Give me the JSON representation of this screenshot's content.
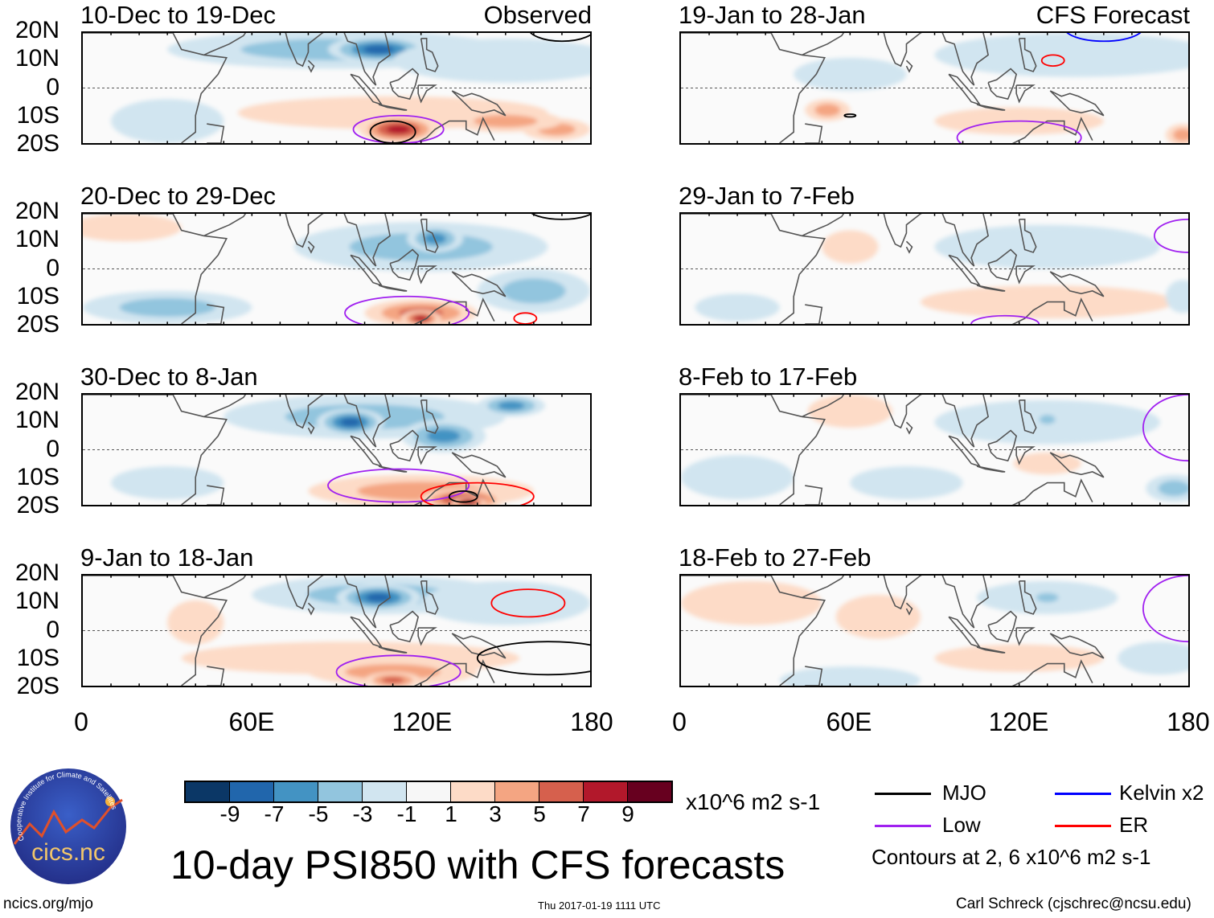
{
  "colors": {
    "scale": [
      "#0b3766",
      "#2166ac",
      "#4393c3",
      "#92c5de",
      "#d1e5f0",
      "#f7f7f7",
      "#fddbc7",
      "#f4a582",
      "#d6604d",
      "#b2182b",
      "#67001f"
    ],
    "MJO": "#000000",
    "Kelvin": "#0000ff",
    "Low": "#a020f0",
    "ER": "#ff0000"
  },
  "lat_labels": [
    "20N",
    "10N",
    "0",
    "10S",
    "20S"
  ],
  "lon_labels": [
    "0",
    "60E",
    "120E",
    "180"
  ],
  "colorbar": {
    "ticks": [
      "-9",
      "-7",
      "-5",
      "-3",
      "-1",
      "1",
      "3",
      "5",
      "7",
      "9"
    ],
    "units": "x10^6 m2 s-1"
  },
  "legend": {
    "items": [
      {
        "label": "MJO",
        "key": "MJO"
      },
      {
        "label": "Kelvin x2",
        "key": "Kelvin"
      },
      {
        "label": "Low",
        "key": "Low"
      },
      {
        "label": "ER",
        "key": "ER"
      }
    ],
    "note": "Contours at 2, 6 x10^6 m2 s-1"
  },
  "title": "10-day PSI850 with CFS forecasts",
  "footer": {
    "left": "ncics.org/mjo",
    "center": "Thu 2017-01-19 1111 UTC",
    "right": "Carl Schreck (cjschrec@ncsu.edu)"
  },
  "logo": {
    "text": "cics.nc",
    "arc": "Cooperative Institute for Climate and Satellites"
  },
  "chart_data": {
    "type": "heatmap",
    "xlim": [
      0,
      180
    ],
    "ylim": [
      -20,
      20
    ],
    "panels": [
      {
        "title": "10-Dec to 19-Dec",
        "label": "Observed",
        "blobs": [
          [
            90,
            14,
            60,
            7,
            -3
          ],
          [
            105,
            14,
            18,
            5,
            -7
          ],
          [
            150,
            10,
            40,
            8,
            -1
          ],
          [
            30,
            -12,
            20,
            8,
            -1
          ],
          [
            110,
            -9,
            55,
            6,
            1
          ],
          [
            112,
            -15,
            14,
            5,
            7
          ],
          [
            168,
            -15,
            12,
            4,
            3
          ],
          [
            150,
            -12,
            20,
            4,
            3
          ]
        ],
        "contours": [
          [
            "Low",
            112,
            -15,
            16,
            5
          ],
          [
            "MJO",
            110,
            -16,
            8,
            4
          ],
          [
            "MJO",
            170,
            22,
            12,
            5
          ]
        ]
      },
      {
        "title": "19-Jan to 28-Jan",
        "label": "CFS Forecast",
        "blobs": [
          [
            140,
            12,
            50,
            8,
            -1
          ],
          [
            60,
            5,
            20,
            6,
            -1
          ],
          [
            52,
            -8,
            8,
            4,
            3
          ],
          [
            120,
            -12,
            30,
            5,
            1
          ],
          [
            178,
            -17,
            6,
            4,
            3
          ]
        ],
        "contours": [
          [
            "Low",
            120,
            -18,
            22,
            6
          ],
          [
            "ER",
            132,
            10,
            4,
            2
          ],
          [
            "Kelvin",
            150,
            22,
            14,
            5
          ],
          [
            "MJO",
            60,
            -10,
            2,
            0.5
          ]
        ]
      },
      {
        "title": "20-Dec to 29-Dec",
        "label": "",
        "blobs": [
          [
            120,
            8,
            45,
            9,
            -3
          ],
          [
            125,
            11,
            10,
            5,
            -5
          ],
          [
            160,
            -8,
            20,
            8,
            -3
          ],
          [
            30,
            -14,
            30,
            6,
            -3
          ],
          [
            15,
            15,
            20,
            5,
            1
          ],
          [
            120,
            -16,
            20,
            5,
            5
          ],
          [
            120,
            -18,
            7,
            3,
            7
          ]
        ],
        "contours": [
          [
            "Low",
            115,
            -16,
            22,
            6
          ],
          [
            "ER",
            157,
            -18,
            4,
            2
          ],
          [
            "MJO",
            170,
            22,
            12,
            4
          ]
        ]
      },
      {
        "title": "29-Jan to 7-Feb",
        "label": "",
        "blobs": [
          [
            130,
            8,
            40,
            8,
            -1
          ],
          [
            60,
            8,
            10,
            6,
            1
          ],
          [
            130,
            -12,
            45,
            6,
            1
          ],
          [
            20,
            -14,
            15,
            5,
            -1
          ],
          [
            178,
            -10,
            6,
            6,
            -1
          ]
        ],
        "contours": [
          [
            "Low",
            180,
            12,
            12,
            6
          ],
          [
            "Low",
            115,
            -20,
            12,
            3
          ]
        ]
      },
      {
        "title": "30-Dec to 8-Jan",
        "label": "",
        "blobs": [
          [
            100,
            12,
            50,
            8,
            -3
          ],
          [
            95,
            10,
            12,
            5,
            -7
          ],
          [
            128,
            5,
            15,
            6,
            -5
          ],
          [
            152,
            16,
            12,
            4,
            -5
          ],
          [
            120,
            -15,
            40,
            6,
            3
          ],
          [
            135,
            -18,
            15,
            4,
            7
          ],
          [
            137,
            -19,
            6,
            2,
            9
          ],
          [
            30,
            -12,
            20,
            6,
            -1
          ]
        ],
        "contours": [
          [
            "Low",
            112,
            -13,
            25,
            6
          ],
          [
            "ER",
            140,
            -17,
            20,
            5
          ],
          [
            "MJO",
            135,
            -17,
            5,
            2
          ]
        ]
      },
      {
        "title": "8-Feb to 17-Feb",
        "label": "",
        "blobs": [
          [
            130,
            10,
            40,
            8,
            -1
          ],
          [
            130,
            11,
            5,
            3,
            -3
          ],
          [
            60,
            14,
            15,
            6,
            1
          ],
          [
            20,
            -10,
            20,
            8,
            -1
          ],
          [
            130,
            -5,
            12,
            4,
            1
          ],
          [
            175,
            -14,
            10,
            5,
            -3
          ],
          [
            80,
            -12,
            20,
            6,
            -1
          ]
        ],
        "contours": [
          [
            "Low",
            180,
            8,
            16,
            12
          ]
        ]
      },
      {
        "title": "9-Jan to 18-Jan",
        "label": "",
        "blobs": [
          [
            105,
            13,
            45,
            7,
            -3
          ],
          [
            105,
            12,
            15,
            5,
            -7
          ],
          [
            150,
            10,
            30,
            8,
            -1
          ],
          [
            95,
            -10,
            60,
            6,
            1
          ],
          [
            110,
            -15,
            30,
            5,
            3
          ],
          [
            110,
            -18,
            10,
            3,
            5
          ],
          [
            40,
            3,
            10,
            8,
            1
          ]
        ],
        "contours": [
          [
            "Low",
            112,
            -15,
            22,
            6
          ],
          [
            "ER",
            158,
            10,
            13,
            5
          ],
          [
            "MJO",
            165,
            -10,
            25,
            6
          ]
        ]
      },
      {
        "title": "18-Feb to 27-Feb",
        "label": "",
        "blobs": [
          [
            25,
            10,
            25,
            8,
            1
          ],
          [
            70,
            5,
            15,
            8,
            1
          ],
          [
            130,
            12,
            25,
            6,
            -1
          ],
          [
            130,
            12,
            7,
            3,
            -3
          ],
          [
            60,
            -18,
            25,
            5,
            -1
          ],
          [
            120,
            -10,
            30,
            5,
            1
          ],
          [
            170,
            -10,
            15,
            6,
            -1
          ]
        ],
        "contours": [
          [
            "Low",
            180,
            8,
            16,
            12
          ]
        ]
      }
    ]
  }
}
